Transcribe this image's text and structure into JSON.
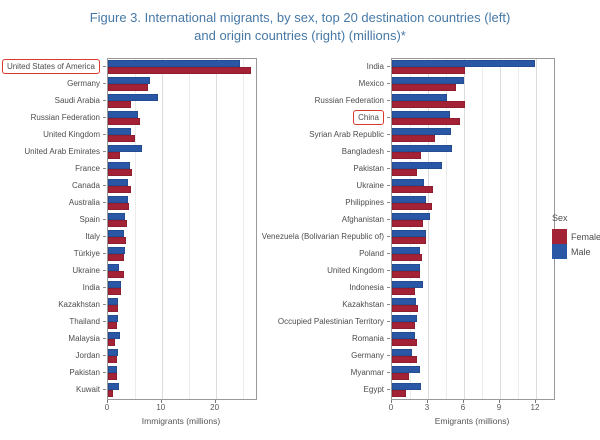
{
  "title": {
    "line1": "Figure 3. International migrants, by sex, top 20 destination countries (left)",
    "line2": "and origin countries (right) (millions)*"
  },
  "colors": {
    "female": "#A32235",
    "male": "#2A57A5",
    "title_text": "#4678A6",
    "highlight_box": "#D93A2B",
    "label_text": "#4D4D4D",
    "axis_text": "#555555",
    "panel_border": "#999999",
    "grid_major": "#DCDCDC",
    "grid_minor": "#ECECEC"
  },
  "legend": {
    "title": "Sex",
    "entries": [
      {
        "label": "Female",
        "color_key": "female"
      },
      {
        "label": "Male",
        "color_key": "male"
      }
    ]
  },
  "chart_data": [
    {
      "type": "bar",
      "orientation": "horizontal",
      "panel": "left",
      "subtitle": "top 20 destination countries",
      "xlabel": "Immigrants (millions)",
      "xlim": [
        0,
        27.5
      ],
      "xticks_major": [
        0,
        10,
        20
      ],
      "xticks_minor": [
        5,
        15,
        25
      ],
      "grid": true,
      "highlighted_category": "United States of America",
      "categories": [
        "United States of America",
        "Germany",
        "Saudi Arabia",
        "Russian Federation",
        "United Kingdom",
        "United Arab Emirates",
        "France",
        "Canada",
        "Australia",
        "Spain",
        "Italy",
        "Türkiye",
        "Ukraine",
        "India",
        "Kazakhstan",
        "Thailand",
        "Malaysia",
        "Jordan",
        "Pakistan",
        "Kuwait"
      ],
      "series": [
        {
          "name": "Male",
          "color_key": "male",
          "values": [
            24.5,
            7.8,
            9.3,
            5.6,
            4.3,
            6.4,
            4.0,
            3.8,
            3.7,
            3.2,
            3.0,
            3.1,
            2.1,
            2.4,
            1.8,
            1.9,
            2.2,
            1.8,
            1.7,
            2.1
          ]
        },
        {
          "name": "Female",
          "color_key": "female",
          "values": [
            26.5,
            7.5,
            4.2,
            6.0,
            5.0,
            2.3,
            4.5,
            4.2,
            3.9,
            3.6,
            3.4,
            2.9,
            2.9,
            2.5,
            1.9,
            1.7,
            1.3,
            1.6,
            1.6,
            1.0
          ]
        }
      ]
    },
    {
      "type": "bar",
      "orientation": "horizontal",
      "panel": "right",
      "subtitle": "top 20 origin countries",
      "xlabel": "Emigrants (millions)",
      "xlim": [
        0,
        13.5
      ],
      "xticks_major": [
        0,
        3,
        6,
        9,
        12
      ],
      "xticks_minor": [
        1.5,
        4.5,
        7.5,
        10.5
      ],
      "grid": true,
      "highlighted_category": "China",
      "categories": [
        "India",
        "Mexico",
        "Russian Federation",
        "China",
        "Syrian Arab Republic",
        "Bangladesh",
        "Pakistan",
        "Ukraine",
        "Philippines",
        "Afghanistan",
        "Venezuela (Bolivarian Republic of)",
        "Poland",
        "United Kingdom",
        "Indonesia",
        "Kazakhstan",
        "Occupied Palestinian Territory",
        "Romania",
        "Germany",
        "Myanmar",
        "Egypt"
      ],
      "series": [
        {
          "name": "Male",
          "color_key": "male",
          "values": [
            11.9,
            6.0,
            4.6,
            4.8,
            4.9,
            5.0,
            4.2,
            2.7,
            2.8,
            3.2,
            2.8,
            2.3,
            2.3,
            2.6,
            2.0,
            2.1,
            1.9,
            1.7,
            2.3,
            2.4
          ]
        },
        {
          "name": "Female",
          "color_key": "female",
          "values": [
            6.1,
            5.3,
            6.1,
            5.7,
            3.6,
            2.4,
            2.1,
            3.4,
            3.3,
            2.6,
            2.8,
            2.5,
            2.3,
            1.9,
            2.2,
            1.9,
            2.1,
            2.1,
            1.4,
            1.2
          ]
        }
      ]
    }
  ]
}
